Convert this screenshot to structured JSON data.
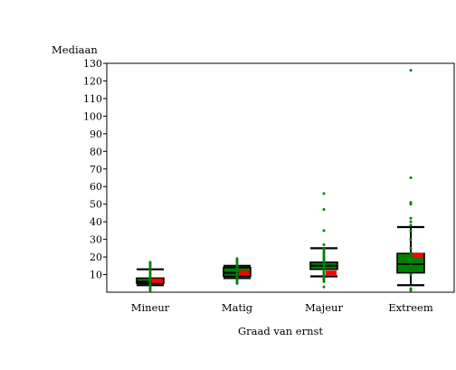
{
  "chart_data": {
    "type": "box",
    "ylabel": "Mediaan",
    "xlabel": "Graad van ernst",
    "ylim": [
      0,
      130
    ],
    "yticks": [
      10,
      20,
      30,
      40,
      50,
      60,
      70,
      80,
      90,
      100,
      110,
      120,
      130
    ],
    "categories": [
      "Mineur",
      "Matig",
      "Majeur",
      "Extreem"
    ],
    "box_color": "#008000",
    "whisker_color": "#000000",
    "mean_color": "#ff0000",
    "outlier_color": "#008000",
    "boxes": [
      {
        "category": "Mineur",
        "whisker_low": 4,
        "q1": 5,
        "median": 6,
        "q3": 8,
        "whisker_high": 13,
        "mean": 6.5,
        "points": [
          1,
          2,
          3,
          4,
          5,
          5.5,
          6,
          6.5,
          7,
          7.5,
          8,
          9,
          10,
          11,
          12,
          13,
          14,
          15,
          16,
          17
        ]
      },
      {
        "category": "Matig",
        "whisker_low": 8,
        "q1": 9,
        "median": 11,
        "q3": 14,
        "whisker_high": 15,
        "mean": 11,
        "points": [
          5,
          6,
          7,
          8,
          9,
          10,
          11,
          12,
          13,
          14,
          15,
          16,
          17,
          18,
          19
        ]
      },
      {
        "category": "Majeur",
        "whisker_low": 9,
        "q1": 13,
        "median": 15,
        "q3": 17,
        "whisker_high": 25,
        "mean": 11,
        "points": [
          3,
          6,
          7,
          8,
          9,
          10,
          11,
          12,
          13,
          14,
          15,
          16,
          17,
          18,
          19,
          20,
          21,
          22,
          23,
          24,
          25,
          27,
          35,
          47,
          56
        ]
      },
      {
        "category": "Extreem",
        "whisker_low": 4,
        "q1": 11,
        "median": 16,
        "q3": 22,
        "whisker_high": 37,
        "mean": 21,
        "points": [
          1,
          2,
          10,
          12,
          15,
          18,
          20,
          22,
          25,
          30,
          35,
          38,
          40,
          42,
          50,
          51,
          65,
          126
        ]
      }
    ]
  }
}
